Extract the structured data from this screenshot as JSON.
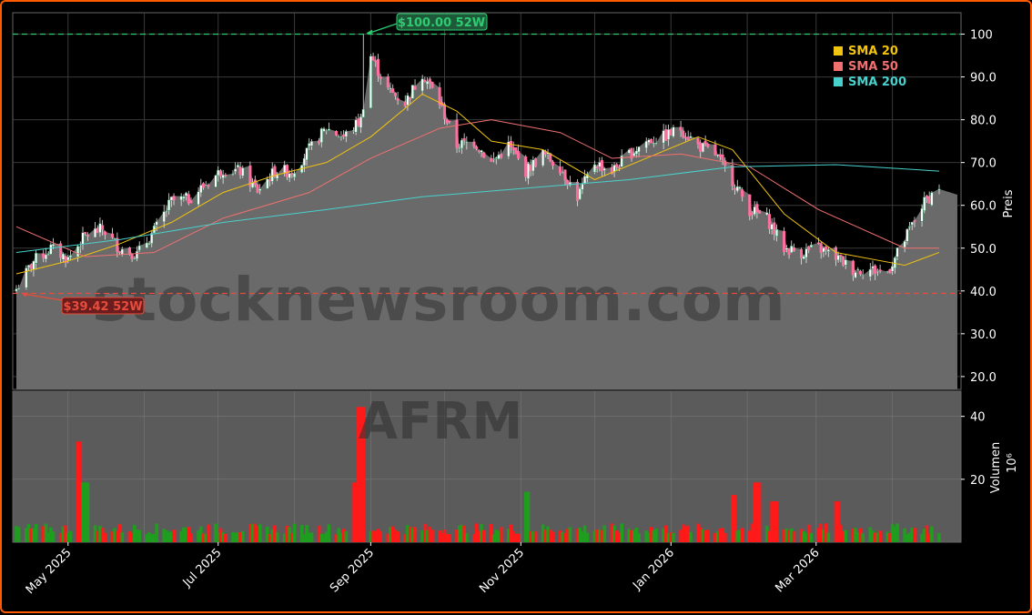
{
  "chart_data": {
    "type": "candlestick",
    "ticker_watermark": "AFRM",
    "site_watermark": "stocknewsroom.com",
    "price_axis": {
      "label": "Preis",
      "ylim": [
        17,
        105
      ],
      "ticks": [
        20.0,
        30.0,
        40.0,
        50.0,
        60.0,
        70.0,
        80.0,
        90.0,
        100
      ],
      "tick_labels": [
        "20.0",
        "30.0",
        "40.0",
        "50.0",
        "60.0",
        "70.0",
        "80.0",
        "90.0",
        "100"
      ]
    },
    "volume_axis": {
      "label": "Volumen",
      "multiplier": "10⁶",
      "ylim": [
        0,
        48
      ],
      "ticks": [
        20,
        40
      ],
      "tick_labels": [
        "20",
        "40"
      ]
    },
    "x_axis": {
      "ticks": [
        "May 2025",
        "Jul 2025",
        "Sep 2025",
        "Nov 2025",
        "Jan 2026",
        "Mar 2026"
      ],
      "range": [
        "2025-04-10",
        "2026-04-20"
      ]
    },
    "high_52w": {
      "value": 100.0,
      "label": "$100.00 52W",
      "color": "#2ecc71"
    },
    "low_52w": {
      "value": 39.42,
      "label": "$39.42 52W",
      "color": "#e74c3c"
    },
    "legend": [
      {
        "name": "SMA 20",
        "color": "#f1c40f"
      },
      {
        "name": "SMA 50",
        "color": "#f07070"
      },
      {
        "name": "SMA 200",
        "color": "#48d1cc"
      }
    ],
    "last_close": 64.5,
    "closes": [
      {
        "d": "2025-04-10",
        "c": 40.5
      },
      {
        "d": "2025-04-17",
        "c": 47.0
      },
      {
        "d": "2025-04-24",
        "c": 50.0
      },
      {
        "d": "2025-05-01",
        "c": 47.5
      },
      {
        "d": "2025-05-08",
        "c": 53.0
      },
      {
        "d": "2025-05-15",
        "c": 54.5
      },
      {
        "d": "2025-05-22",
        "c": 50.0
      },
      {
        "d": "2025-05-29",
        "c": 48.5
      },
      {
        "d": "2025-06-05",
        "c": 54.0
      },
      {
        "d": "2025-06-12",
        "c": 61.0
      },
      {
        "d": "2025-06-19",
        "c": 61.5
      },
      {
        "d": "2025-06-26",
        "c": 65.0
      },
      {
        "d": "2025-07-03",
        "c": 68.5
      },
      {
        "d": "2025-07-10",
        "c": 68.0
      },
      {
        "d": "2025-07-17",
        "c": 63.5
      },
      {
        "d": "2025-07-24",
        "c": 68.0
      },
      {
        "d": "2025-07-31",
        "c": 68.0
      },
      {
        "d": "2025-08-07",
        "c": 73.0
      },
      {
        "d": "2025-08-14",
        "c": 78.0
      },
      {
        "d": "2025-08-21",
        "c": 76.0
      },
      {
        "d": "2025-08-28",
        "c": 80.0
      },
      {
        "d": "2025-09-01",
        "c": 95.0
      },
      {
        "d": "2025-09-08",
        "c": 87.0
      },
      {
        "d": "2025-09-15",
        "c": 84.0
      },
      {
        "d": "2025-09-22",
        "c": 91.0
      },
      {
        "d": "2025-09-29",
        "c": 84.0
      },
      {
        "d": "2025-10-06",
        "c": 74.0
      },
      {
        "d": "2025-10-13",
        "c": 75.0
      },
      {
        "d": "2025-10-20",
        "c": 70.0
      },
      {
        "d": "2025-10-27",
        "c": 74.0
      },
      {
        "d": "2025-11-03",
        "c": 68.0
      },
      {
        "d": "2025-11-10",
        "c": 72.0
      },
      {
        "d": "2025-11-17",
        "c": 69.0
      },
      {
        "d": "2025-11-24",
        "c": 62.0
      },
      {
        "d": "2025-12-01",
        "c": 70.0
      },
      {
        "d": "2025-12-08",
        "c": 68.0
      },
      {
        "d": "2025-12-15",
        "c": 72.0
      },
      {
        "d": "2025-12-22",
        "c": 75.0
      },
      {
        "d": "2025-12-29",
        "c": 76.0
      },
      {
        "d": "2026-01-05",
        "c": 78.0
      },
      {
        "d": "2026-01-12",
        "c": 74.0
      },
      {
        "d": "2026-01-19",
        "c": 72.0
      },
      {
        "d": "2026-01-26",
        "c": 66.0
      },
      {
        "d": "2026-02-02",
        "c": 59.0
      },
      {
        "d": "2026-02-09",
        "c": 57.0
      },
      {
        "d": "2026-02-16",
        "c": 50.0
      },
      {
        "d": "2026-02-23",
        "c": 49.0
      },
      {
        "d": "2026-03-02",
        "c": 50.0
      },
      {
        "d": "2026-03-09",
        "c": 48.0
      },
      {
        "d": "2026-03-16",
        "c": 45.0
      },
      {
        "d": "2026-03-23",
        "c": 45.0
      },
      {
        "d": "2026-03-30",
        "c": 44.5
      },
      {
        "d": "2026-04-06",
        "c": 52.0
      },
      {
        "d": "2026-04-13",
        "c": 60.0
      },
      {
        "d": "2026-04-20",
        "c": 64.5
      }
    ],
    "sma20": [
      {
        "d": "2025-04-10",
        "v": 44
      },
      {
        "d": "2025-05-01",
        "v": 47
      },
      {
        "d": "2025-05-22",
        "v": 51
      },
      {
        "d": "2025-06-12",
        "v": 56
      },
      {
        "d": "2025-07-03",
        "v": 63
      },
      {
        "d": "2025-07-24",
        "v": 67
      },
      {
        "d": "2025-08-14",
        "v": 70
      },
      {
        "d": "2025-09-01",
        "v": 76
      },
      {
        "d": "2025-09-22",
        "v": 86
      },
      {
        "d": "2025-10-06",
        "v": 82
      },
      {
        "d": "2025-10-20",
        "v": 75
      },
      {
        "d": "2025-11-10",
        "v": 73
      },
      {
        "d": "2025-12-01",
        "v": 66
      },
      {
        "d": "2025-12-22",
        "v": 71
      },
      {
        "d": "2026-01-12",
        "v": 76
      },
      {
        "d": "2026-01-26",
        "v": 73
      },
      {
        "d": "2026-02-16",
        "v": 58
      },
      {
        "d": "2026-03-09",
        "v": 49
      },
      {
        "d": "2026-04-06",
        "v": 46
      },
      {
        "d": "2026-04-20",
        "v": 49
      }
    ],
    "sma50": [
      {
        "d": "2025-04-10",
        "v": 55
      },
      {
        "d": "2025-05-08",
        "v": 48
      },
      {
        "d": "2025-06-05",
        "v": 49
      },
      {
        "d": "2025-07-03",
        "v": 57
      },
      {
        "d": "2025-08-07",
        "v": 63
      },
      {
        "d": "2025-09-01",
        "v": 71
      },
      {
        "d": "2025-09-29",
        "v": 78
      },
      {
        "d": "2025-10-20",
        "v": 80
      },
      {
        "d": "2025-11-17",
        "v": 77
      },
      {
        "d": "2025-12-08",
        "v": 71
      },
      {
        "d": "2026-01-05",
        "v": 72
      },
      {
        "d": "2026-02-02",
        "v": 69
      },
      {
        "d": "2026-03-02",
        "v": 59
      },
      {
        "d": "2026-04-06",
        "v": 50
      },
      {
        "d": "2026-04-20",
        "v": 50
      }
    ],
    "sma200": [
      {
        "d": "2025-04-10",
        "v": 49
      },
      {
        "d": "2025-05-22",
        "v": 52
      },
      {
        "d": "2025-07-03",
        "v": 56
      },
      {
        "d": "2025-08-14",
        "v": 59
      },
      {
        "d": "2025-09-22",
        "v": 62
      },
      {
        "d": "2025-11-03",
        "v": 64
      },
      {
        "d": "2025-12-15",
        "v": 66
      },
      {
        "d": "2026-01-26",
        "v": 69
      },
      {
        "d": "2026-03-09",
        "v": 69.5
      },
      {
        "d": "2026-04-20",
        "v": 68
      }
    ],
    "volume_spikes": [
      {
        "d": "2025-05-05",
        "v": 32,
        "dir": "down"
      },
      {
        "d": "2025-05-08",
        "v": 19,
        "dir": "up"
      },
      {
        "d": "2025-08-25",
        "v": 19,
        "dir": "down"
      },
      {
        "d": "2025-08-28",
        "v": 43,
        "dir": "down"
      },
      {
        "d": "2025-11-03",
        "v": 16,
        "dir": "up"
      },
      {
        "d": "2026-01-26",
        "v": 15,
        "dir": "down"
      },
      {
        "d": "2026-02-05",
        "v": 19,
        "dir": "down"
      },
      {
        "d": "2026-02-12",
        "v": 13,
        "dir": "down"
      },
      {
        "d": "2026-03-09",
        "v": 13,
        "dir": "down"
      }
    ]
  }
}
